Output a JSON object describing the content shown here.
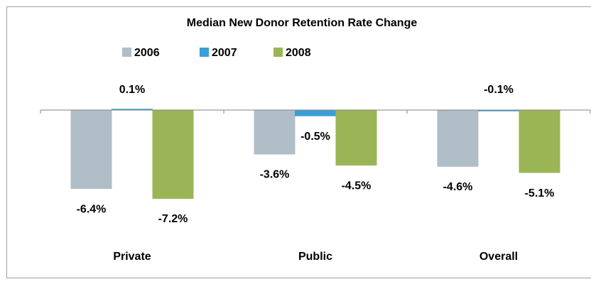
{
  "chart_data": {
    "type": "bar",
    "title": "Median New Donor Retention Rate Change",
    "categories": [
      "Private",
      "Public",
      "Overall"
    ],
    "series": [
      {
        "name": "2006",
        "color": "#b0bec8",
        "values": [
          -6.4,
          -3.6,
          -4.6
        ],
        "value_labels": [
          "-6.4%",
          "-3.6%",
          "-4.6%"
        ]
      },
      {
        "name": "2007",
        "color": "#3a9fd6",
        "values": [
          0.1,
          -0.5,
          -0.1
        ],
        "value_labels": [
          "0.1%",
          "-0.5%",
          "-0.1%"
        ]
      },
      {
        "name": "2008",
        "color": "#9bb556",
        "values": [
          -7.2,
          -4.5,
          -5.1
        ],
        "value_labels": [
          "-7.2%",
          "-4.5%",
          "-5.1%"
        ]
      }
    ],
    "ylim": [
      -10,
      2
    ],
    "legend": "top"
  }
}
